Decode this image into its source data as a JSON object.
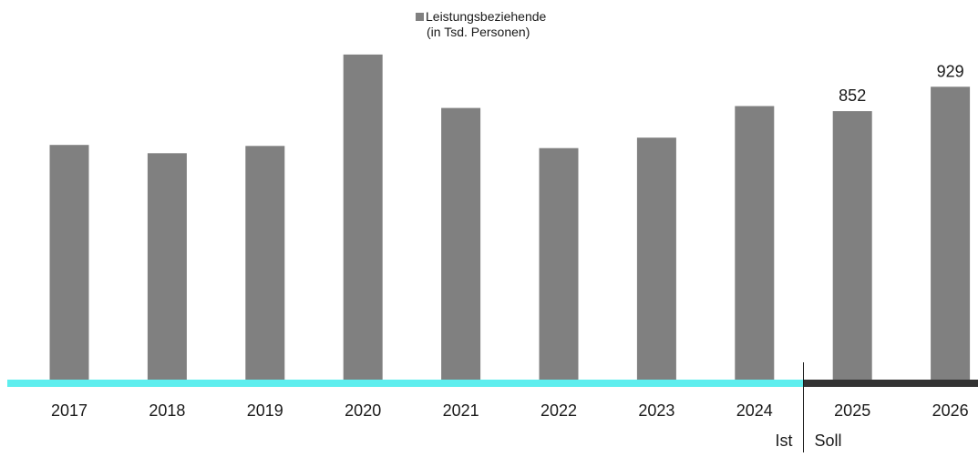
{
  "chart_data": {
    "type": "bar",
    "categories": [
      "2017",
      "2018",
      "2019",
      "2020",
      "2021",
      "2022",
      "2023",
      "2024",
      "2025",
      "2026"
    ],
    "series": [
      {
        "name": "Leistungsbeziehende",
        "values": [
          745,
          719,
          742,
          1031,
          862,
          735,
          768,
          868,
          852,
          929
        ],
        "data_labels": [
          "",
          "",
          "",
          "",
          "",
          "",
          "",
          "",
          "852",
          "929"
        ]
      }
    ],
    "legend": {
      "line1": "Leistungsbeziehende",
      "line2": "(in Tsd. Personen)",
      "placement": "top-center"
    },
    "ylim": [
      0,
      1100
    ],
    "grid": false,
    "split": {
      "after_index": 7,
      "left_label": "Ist",
      "right_label": "Soll"
    },
    "colors": {
      "bar": "#808080",
      "baseline_ist": "#5eeeee",
      "baseline_soll": "#333333",
      "text": "#1a1a1a"
    }
  }
}
